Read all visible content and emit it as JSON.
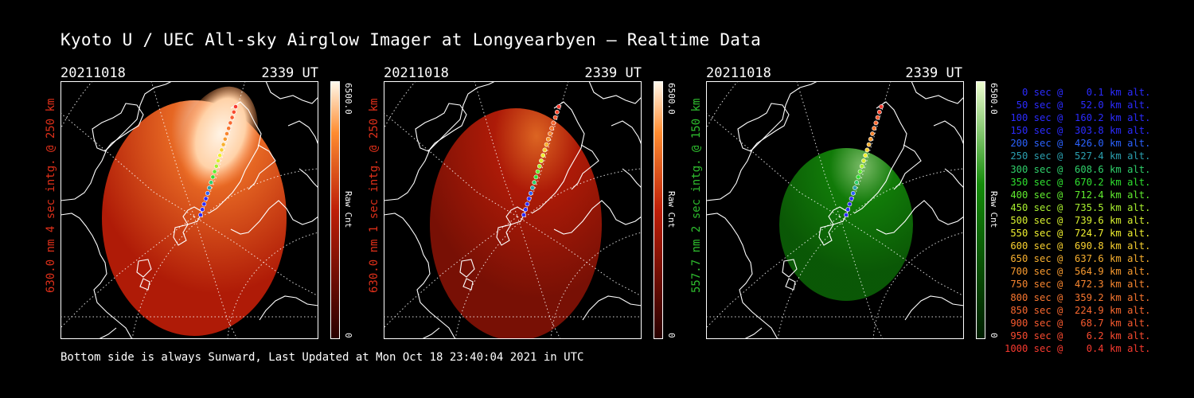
{
  "title": "Kyoto U / UEC All-sky Airglow Imager at Longyearbyen — Realtime Data",
  "panels": [
    {
      "date": "20211018",
      "time": "2339 UT",
      "ylabel": "630.0 nm 4 sec intg. @ 250 km",
      "ylabel_color": "#e0301a",
      "colormap": "red",
      "brightness": 1.0,
      "colorbar_max": "6500.0",
      "colorbar_min": "0",
      "colorbar_title": "Raw Cnt"
    },
    {
      "date": "20211018",
      "time": "2339 UT",
      "ylabel": "630.0 nm 1 sec intg. @ 250 km",
      "ylabel_color": "#e0301a",
      "colormap": "red",
      "brightness": 0.35,
      "colorbar_max": "6500.0",
      "colorbar_min": "0",
      "colorbar_title": "Raw Cnt"
    },
    {
      "date": "20211018",
      "time": "2339 UT",
      "ylabel": "557.7 nm 2 sec intg. @ 150 km",
      "ylabel_color": "#2fbf2f",
      "colormap": "green",
      "brightness": 0.55,
      "colorbar_max": "6500.0",
      "colorbar_min": "0",
      "colorbar_title": "Raw Cnt"
    }
  ],
  "legend": [
    {
      "text": "   0 sec @    0.1 km alt.",
      "color": "#2b2bff"
    },
    {
      "text": "  50 sec @   52.0 km alt.",
      "color": "#2b2bff"
    },
    {
      "text": " 100 sec @  160.2 km alt.",
      "color": "#2b2bff"
    },
    {
      "text": " 150 sec @  303.8 km alt.",
      "color": "#2b2bff"
    },
    {
      "text": " 200 sec @  426.0 km alt.",
      "color": "#2b62ff"
    },
    {
      "text": " 250 sec @  527.4 km alt.",
      "color": "#2ba0b0"
    },
    {
      "text": " 300 sec @  608.6 km alt.",
      "color": "#2fd06a"
    },
    {
      "text": " 350 sec @  670.2 km alt.",
      "color": "#2fe02f"
    },
    {
      "text": " 400 sec @  712.4 km alt.",
      "color": "#60ec2f"
    },
    {
      "text": " 450 sec @  735.5 km alt.",
      "color": "#a8f02f"
    },
    {
      "text": " 500 sec @  739.6 km alt.",
      "color": "#d8f02f"
    },
    {
      "text": " 550 sec @  724.7 km alt.",
      "color": "#f0f02f"
    },
    {
      "text": " 600 sec @  690.8 km alt.",
      "color": "#f8d02f"
    },
    {
      "text": " 650 sec @  637.6 km alt.",
      "color": "#f8b02f"
    },
    {
      "text": " 700 sec @  564.9 km alt.",
      "color": "#f89a2f"
    },
    {
      "text": " 750 sec @  472.3 km alt.",
      "color": "#f8862f"
    },
    {
      "text": " 800 sec @  359.2 km alt.",
      "color": "#f8762f"
    },
    {
      "text": " 850 sec @  224.9 km alt.",
      "color": "#f8682f"
    },
    {
      "text": " 900 sec @   68.7 km alt.",
      "color": "#f85a2f"
    },
    {
      "text": " 950 sec @    6.2 km alt.",
      "color": "#f84a2f"
    },
    {
      "text": "1000 sec @    0.4 km alt.",
      "color": "#f83a2f"
    }
  ],
  "footer": "Bottom side is always Sunward, Last Updated at Mon Oct 18 23:40:04 2021 in UTC"
}
